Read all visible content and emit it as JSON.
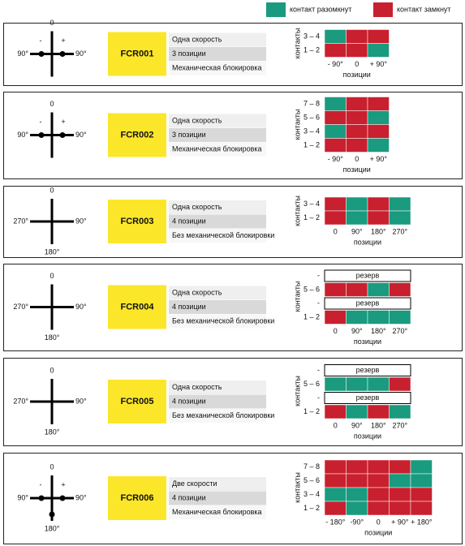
{
  "legend": [
    {
      "label": "контакт разомкнут",
      "color": "#1a9a7f"
    },
    {
      "label": "контакт замкнут",
      "color": "#c8202e"
    }
  ],
  "panels": [
    {
      "dial": {
        "top": "0",
        "left": "90°",
        "right": "90°",
        "minus": "-",
        "plus": "+"
      },
      "code": "FCR001",
      "specs": [
        "Одна скорость",
        "3 позиции",
        "Механическая блокировка"
      ],
      "contacts": {
        "y_label": "контакты",
        "x_label": "позиции",
        "columns": [
          "- 90°",
          "0",
          "+ 90°"
        ],
        "rows": [
          {
            "label": "3 – 4",
            "cells": [
              0,
              1,
              1
            ]
          },
          {
            "label": "1 – 2",
            "cells": [
              1,
              1,
              0
            ]
          }
        ]
      }
    },
    {
      "dial": {
        "top": "0",
        "left": "90°",
        "right": "90°",
        "minus": "-",
        "plus": "+"
      },
      "code": "FCR002",
      "specs": [
        "Одна скорость",
        "3 позиции",
        "Механическая блокировка"
      ],
      "contacts": {
        "y_label": "контакты",
        "x_label": "позиции",
        "columns": [
          "- 90°",
          "0",
          "+ 90°"
        ],
        "rows": [
          {
            "label": "7 – 8",
            "cells": [
              0,
              1,
              1
            ]
          },
          {
            "label": "5 – 6",
            "cells": [
              1,
              1,
              0
            ]
          },
          {
            "label": "3 – 4",
            "cells": [
              0,
              1,
              1
            ]
          },
          {
            "label": "1 – 2",
            "cells": [
              1,
              1,
              0
            ]
          }
        ]
      }
    },
    {
      "dial": {
        "top": "0",
        "left": "270°",
        "right": "90°",
        "bottom": "180°"
      },
      "code": "FCR003",
      "specs": [
        "Одна скорость",
        "4 позиции",
        "Без механической блокировки"
      ],
      "contacts": {
        "y_label": "контакты",
        "x_label": "позиции",
        "columns": [
          "0",
          "90°",
          "180°",
          "270°"
        ],
        "rows": [
          {
            "label": "3 – 4",
            "cells": [
              1,
              0,
              1,
              0
            ]
          },
          {
            "label": "1 – 2",
            "cells": [
              1,
              0,
              1,
              0
            ]
          }
        ]
      }
    },
    {
      "dial": {
        "top": "0",
        "left": "270°",
        "right": "90°",
        "bottom": "180°"
      },
      "code": "FCR004",
      "specs": [
        "Одна скорость",
        "4 позиции",
        "Без механической блокировки"
      ],
      "contacts": {
        "y_label": "контакты",
        "x_label": "позиции",
        "columns": [
          "0",
          "90°",
          "180°",
          "270°"
        ],
        "rows": [
          {
            "label": "-",
            "reserve": "резерв"
          },
          {
            "label": "5 – 6",
            "cells": [
              1,
              1,
              0,
              1
            ]
          },
          {
            "label": "-",
            "reserve": "резерв"
          },
          {
            "label": "1 – 2",
            "cells": [
              1,
              0,
              0,
              0
            ]
          }
        ]
      }
    },
    {
      "dial": {
        "top": "0",
        "left": "270°",
        "right": "90°",
        "bottom": "180°"
      },
      "code": "FCR005",
      "specs": [
        "Одна скорость",
        "4 позиции",
        "Без механической блокировки"
      ],
      "contacts": {
        "y_label": "контакты",
        "x_label": "позиции",
        "columns": [
          "0",
          "90°",
          "180°",
          "270°"
        ],
        "rows": [
          {
            "label": "-",
            "reserve": "резерв"
          },
          {
            "label": "5 – 6",
            "cells": [
              0,
              0,
              0,
              1
            ]
          },
          {
            "label": "-",
            "reserve": "резерв"
          },
          {
            "label": "1 – 2",
            "cells": [
              1,
              0,
              1,
              0
            ]
          }
        ]
      }
    },
    {
      "dial": {
        "top": "0",
        "left": "90°",
        "right": "90°",
        "bottom": "180°",
        "minus": "-",
        "plus": "+"
      },
      "code": "FCR006",
      "specs": [
        "Две скорости",
        "4 позиции",
        "Механическая блокировка"
      ],
      "contacts": {
        "y_label": "контакты",
        "x_label": "позиции",
        "columns": [
          "- 180°",
          "-90°",
          "0",
          "+ 90°",
          "+ 180°"
        ],
        "rows": [
          {
            "label": "7 – 8",
            "cells": [
              1,
              1,
              1,
              1,
              0
            ]
          },
          {
            "label": "5 – 6",
            "cells": [
              1,
              1,
              1,
              0,
              0
            ]
          },
          {
            "label": "3 – 4",
            "cells": [
              0,
              0,
              1,
              1,
              1
            ]
          },
          {
            "label": "1 – 2",
            "cells": [
              1,
              0,
              1,
              1,
              1
            ]
          }
        ]
      }
    }
  ]
}
